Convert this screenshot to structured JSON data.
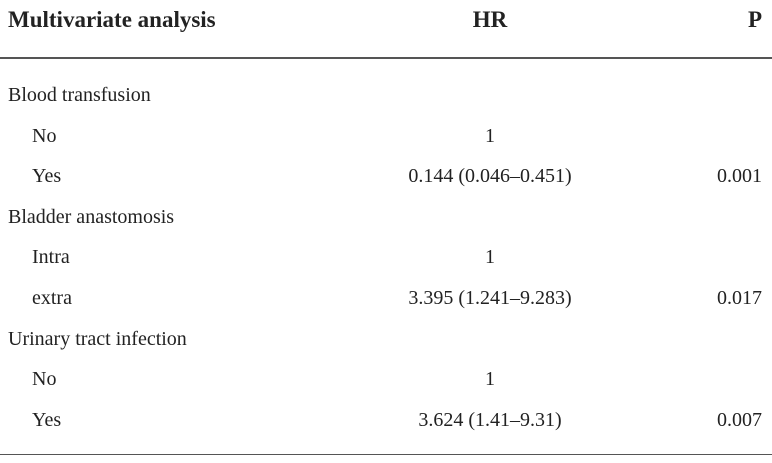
{
  "table": {
    "header": [
      "Multivariate analysis",
      "HR",
      "P"
    ],
    "groups": [
      {
        "label": "Blood transfusion",
        "rows": [
          [
            "No",
            "1"
          ],
          [
            "Yes",
            "0.144 (0.046–0.451)",
            "0.001"
          ]
        ]
      },
      {
        "label": "Bladder anastomosis",
        "rows": [
          [
            "Intra",
            "1"
          ],
          [
            "extra",
            "3.395 (1.241–9.283)",
            "0.017"
          ]
        ]
      },
      {
        "label": "Urinary tract infection",
        "rows": [
          [
            "No",
            "1"
          ],
          [
            "Yes",
            "3.624 (1.41–9.31)",
            "0.007"
          ]
        ]
      }
    ]
  }
}
